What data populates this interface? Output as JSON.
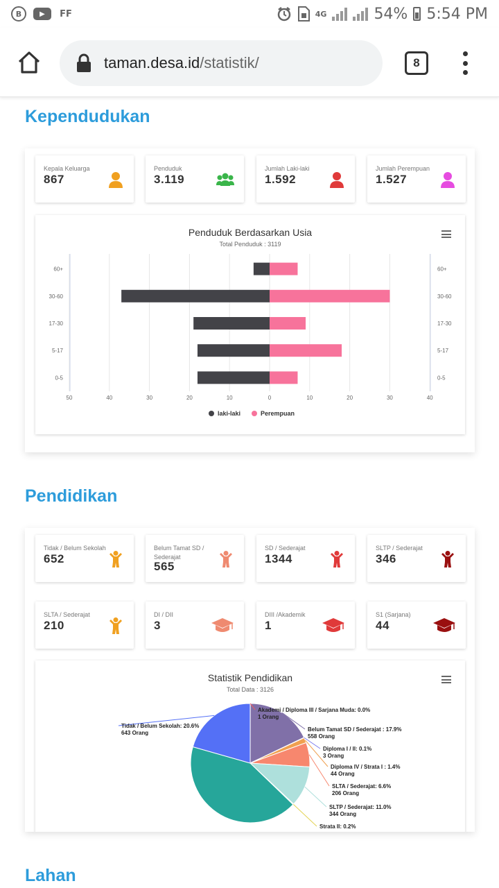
{
  "statusbar": {
    "left_icons": [
      "b-icon",
      "youtube-icon",
      "ff-icon"
    ],
    "left_labels": [
      "B",
      "▶",
      "FF"
    ],
    "network": "4G",
    "battery": "54%",
    "time": "5:54 PM"
  },
  "browser": {
    "url_domain": "taman.desa.id",
    "url_path": "/statistik/",
    "tab_count": "8"
  },
  "kependudukan": {
    "title": "Kependudukan",
    "cards": [
      {
        "label": "Kepala Keluarga",
        "value": "867",
        "icon": "user-icon",
        "color": "#f0a020"
      },
      {
        "label": "Penduduk",
        "value": "3.119",
        "icon": "users-icon",
        "color": "#3ab54a"
      },
      {
        "label": "Jumlah Laki-laki",
        "value": "1.592",
        "icon": "user-icon",
        "color": "#e03a3a"
      },
      {
        "label": "Jumlah Perempuan",
        "value": "1.527",
        "icon": "user-icon",
        "color": "#e64ce0"
      }
    ]
  },
  "chart_data": [
    {
      "type": "bar",
      "orientation": "horizontal",
      "title": "Penduduk Berdasarkan Usia",
      "subtitle": "Total Penduduk : 3119",
      "categories": [
        "60+",
        "30-60",
        "17-30",
        "5-17",
        "0-5"
      ],
      "xticks": [
        "50",
        "40",
        "30",
        "20",
        "10",
        "0",
        "10",
        "20",
        "30",
        "40"
      ],
      "xlim": [
        -40,
        40
      ],
      "series": [
        {
          "name": "laki-laki",
          "color": "#434348",
          "values": [
            -4,
            -37,
            -19,
            -18,
            -18
          ]
        },
        {
          "name": "Perempuan",
          "color": "#f7739b",
          "values": [
            7,
            30,
            9,
            18,
            7
          ]
        }
      ],
      "legend": "bottom-center",
      "grid": true
    },
    {
      "type": "pie",
      "title": "Statistik Pendidikan",
      "subtitle": "Total Data : 3126",
      "slices": [
        {
          "label": "Akademi / Diploma III / Sarjana Muda: 0.0%",
          "count": "1 Orang",
          "value": 0.03,
          "color": "#f45b5b"
        },
        {
          "label": "Belum Tamat SD / Sederajat : 17.9%",
          "count": "558 Orang",
          "value": 17.9,
          "color": "#8070a8"
        },
        {
          "label": "Diploma I / II: 0.1%",
          "count": "3 Orang",
          "value": 0.1,
          "color": "#7c7cf0"
        },
        {
          "label": "Diploma IV / Strata I : 1.4%",
          "count": "44 Orang",
          "value": 1.4,
          "color": "#f0a050"
        },
        {
          "label": "SLTA / Sederajat: 6.6%",
          "count": "206 Orang",
          "value": 6.6,
          "color": "#f7876e"
        },
        {
          "label": "SLTP / Sederajat: 11.0%",
          "count": "344 Orang",
          "value": 11.0,
          "color": "#aee0dc"
        },
        {
          "label": "Strata II: 0.2%",
          "count": "",
          "value": 0.2,
          "color": "#e4d354"
        },
        {
          "label": "",
          "count": "",
          "value": 42.2,
          "color": "#26a69a"
        },
        {
          "label": "Tidak / Belum Sekolah: 20.6%",
          "count": "643 Orang",
          "value": 20.6,
          "color": "#5470f6"
        }
      ]
    }
  ],
  "pendidikan": {
    "title": "Pendidikan",
    "cards": [
      {
        "label": "Tidak / Belum Sekolah",
        "value": "652",
        "icon": "child-icon",
        "color": "#f0a020"
      },
      {
        "label": "Belum Tamat SD / Sederajat",
        "value": "565",
        "icon": "child-icon",
        "color": "#ef8a70"
      },
      {
        "label": "SD / Sederajat",
        "value": "1344",
        "icon": "child-icon",
        "color": "#e03a3a"
      },
      {
        "label": "SLTP / Sederajat",
        "value": "346",
        "icon": "child-icon",
        "color": "#9a1010"
      },
      {
        "label": "SLTA / Sederajat",
        "value": "210",
        "icon": "child-icon",
        "color": "#f0a020"
      },
      {
        "label": "DI / DII",
        "value": "3",
        "icon": "graduation-cap-icon",
        "color": "#ef8a70"
      },
      {
        "label": "DIII /Akademik",
        "value": "1",
        "icon": "graduation-cap-icon",
        "color": "#e03a3a"
      },
      {
        "label": "S1 (Sarjana)",
        "value": "44",
        "icon": "graduation-cap-icon",
        "color": "#9a1010"
      }
    ]
  },
  "lahan": {
    "title": "Lahan"
  }
}
